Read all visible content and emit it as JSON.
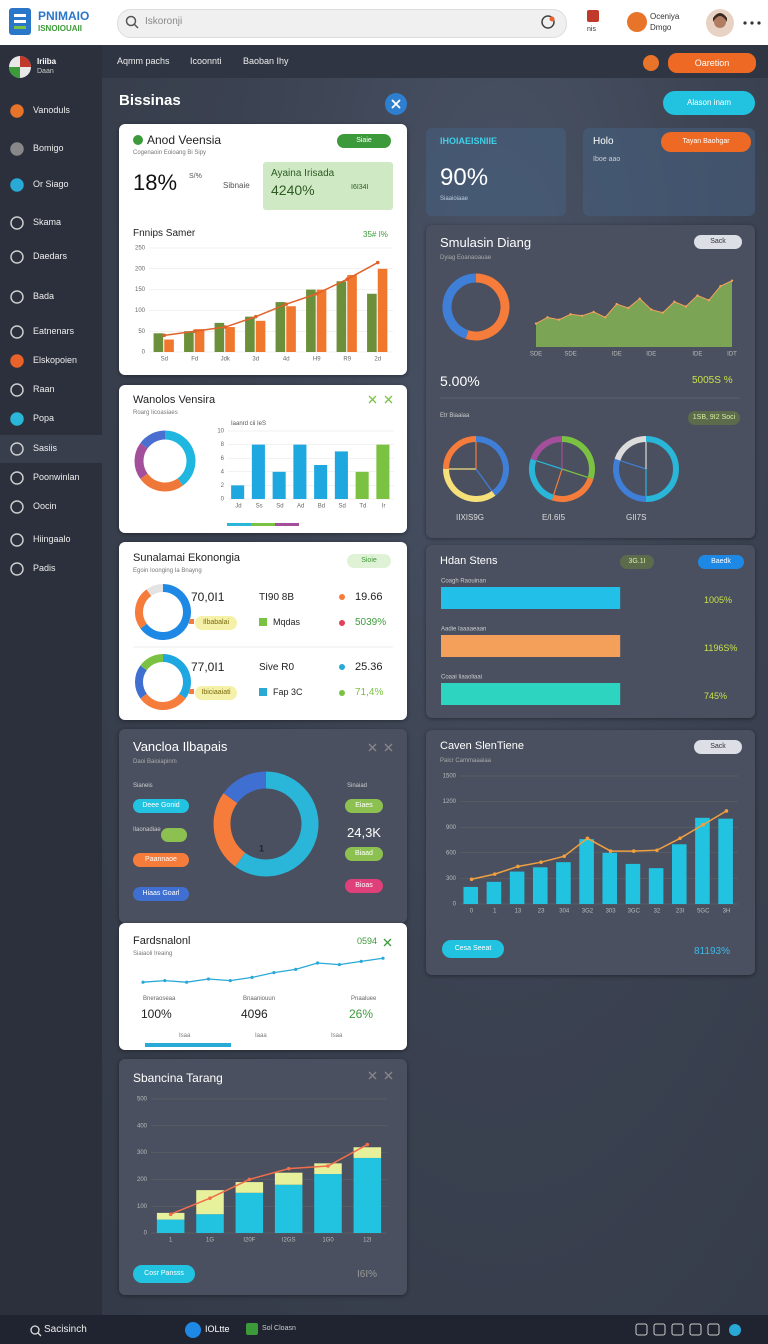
{
  "topbar": {
    "logo_title": "PNIMAIO",
    "logo_subtitle": "ISNOIOUAII",
    "search": "Iskoronji",
    "badge": "nis",
    "user_name": "Oceniya",
    "user_role": "Dmgo"
  },
  "sidebar": {
    "profile_name": "Iriiba",
    "profile_sub": "Daan",
    "items": [
      "Vanoduls",
      "Bomigo",
      "Or Siago",
      "Skama",
      "Daedars",
      "Bada",
      "Eatnenars",
      "Elskopoien",
      "Raan",
      "Popa",
      "Sasiis",
      "Poonwinlan",
      "Oocin",
      "Hiingaalo",
      "Padis"
    ]
  },
  "subnav": {
    "links": [
      "Aqmm pachs",
      "Icoonnti",
      "Baoban Ihy"
    ],
    "button": "Oaretion"
  },
  "main": {
    "title": "Bissinas",
    "button": "Alason inam"
  },
  "cards": {
    "a": {
      "title": "Anod Veensia",
      "subtitle": "Cogenaoin Eoioang Bi Sipy",
      "badge": "Siaie",
      "kpi": "18%",
      "kpi_unit": "S/%",
      "kpi_note": "Sibnaie",
      "callout_title": "Ayaina Irisada",
      "callout_value": "4240%",
      "callout_note": "I6I34I",
      "chart_title": "Fnnips Samer",
      "chart_badge": "35# I%",
      "chart": {
        "type": "bar",
        "grid": true,
        "categories": [
          "Sd",
          "Fd",
          "Jdk",
          "3d",
          "4d",
          "H9",
          "R9",
          "2d"
        ],
        "ylim": [
          0,
          250
        ],
        "yticks": [
          0,
          50,
          100,
          150,
          200,
          250
        ],
        "series": [
          {
            "color": "#6b8f3a",
            "values": [
              45,
              50,
              70,
              85,
              120,
              150,
              170,
              140
            ]
          },
          {
            "color": "#f0772e",
            "values": [
              30,
              55,
              60,
              75,
              110,
              150,
              185,
              200
            ]
          },
          {
            "type": "line",
            "color": "#e0622a",
            "values": [
              40,
              50,
              60,
              85,
              115,
              140,
              175,
              215
            ]
          }
        ]
      }
    },
    "b": {
      "title": "Wanolos Vensira",
      "subtitle": "Roarg Iicoasiaes",
      "chart_title": "Iaanrd cii IeS",
      "donut": {
        "type": "donut",
        "values": [
          40,
          25,
          20,
          15
        ],
        "colors": [
          "#1fb6e0",
          "#f0773a",
          "#a34f9b",
          "#4a6fd0"
        ]
      },
      "chart": {
        "type": "bar",
        "grid": true,
        "categories": [
          "Jd",
          "Ss",
          "Sd",
          "Ad",
          "Bd",
          "Sd",
          "Td",
          "Ir"
        ],
        "ylim": [
          0,
          10
        ],
        "yticks": [
          0,
          2,
          4,
          6,
          8,
          10
        ],
        "series": [
          {
            "colors": [
              "#1fa8e0",
              "#1fa8e0",
              "#1fa8e0",
              "#1fa8e0",
              "#1fa8e0",
              "#1fa8e0",
              "#7cc242",
              "#7cc242"
            ],
            "values": [
              2,
              8,
              4,
              8,
              5,
              7,
              4,
              8
            ]
          }
        ]
      }
    },
    "c": {
      "title": "Sunalamai Ekonongia",
      "subtitle": "Egoin Ioonging Ia Bnayng",
      "badge": "Sioie",
      "rows": [
        {
          "donut": {
            "type": "donut",
            "values": [
              65,
              25,
              10
            ],
            "colors": [
              "#1e88e5",
              "#f57c3a",
              "#e3e3e3"
            ]
          },
          "total": "70,0I1",
          "chip": "Ilbabalai",
          "metric": "TI90 8B",
          "metric_label": "Mqdas",
          "stat1": "19.66",
          "stat2": "5039%"
        },
        {
          "donut": {
            "type": "donut",
            "values": [
              35,
              30,
              20,
              15
            ],
            "colors": [
              "#1ea7e0",
              "#f57c3a",
              "#3f6fd0",
              "#7cc242"
            ]
          },
          "total": "77,0I1",
          "chip": "Ibiciaaiati",
          "metric": "Sive R0",
          "metric_label": "Fap 3C",
          "stat1": "25.36",
          "stat2": "71,4%"
        }
      ]
    },
    "d": {
      "title": "Vancloa Ilbapais",
      "subtitle": "Daoi Baioiapinm",
      "left_labels": [
        "Sianeis",
        "Ilaonadiae"
      ],
      "pills": [
        "Deee Gonid",
        "Paannaoe",
        "Hiaas Goarl"
      ],
      "donut": {
        "type": "donut",
        "values": [
          60,
          25,
          15
        ],
        "colors": [
          "#29b6d8",
          "#f57c3a",
          "#3f6fd0"
        ],
        "center": "1"
      },
      "right_label": "Sinaiad",
      "right_pills": [
        "Eiaes",
        "Biaad",
        "Bioas"
      ],
      "right_value": "24,3K"
    },
    "e": {
      "title": "Fardsnalonl",
      "subtitle": "Siaiaoli Ireaing",
      "badge": "0594",
      "chart": {
        "type": "line",
        "values": [
          8,
          9,
          8,
          10,
          9,
          11,
          14,
          16,
          20,
          19,
          21,
          23
        ],
        "ylim": [
          0,
          25
        ],
        "color": "#29a9d6"
      },
      "stats": [
        {
          "label": "Bneraoseaa",
          "value": "100%"
        },
        {
          "label": "Bnaaniouun",
          "value": "4096"
        },
        {
          "label": "Pnaaluee",
          "value": "26%"
        }
      ],
      "footer": [
        "Isaa",
        "Iaaa",
        "Isaa"
      ]
    },
    "f": {
      "title": "Sbancina Tarang",
      "button": "Cosr Pansss",
      "footer": "I6I%",
      "chart": {
        "type": "bar",
        "stacked": true,
        "grid": true,
        "categories": [
          "1",
          "1G",
          "I20F",
          "I2GS",
          "1G0",
          "12I"
        ],
        "ylim": [
          0,
          500
        ],
        "yticks": [
          0,
          100,
          200,
          300,
          400,
          500
        ],
        "series": [
          {
            "color": "#22c3e0",
            "values": [
              50,
              70,
              150,
              180,
              220,
              280
            ]
          },
          {
            "color": "#e7f09a",
            "values": [
              25,
              90,
              40,
              45,
              40,
              40
            ]
          },
          {
            "type": "line",
            "color": "#f26d4a",
            "values": [
              70,
              130,
              200,
              240,
              250,
              330
            ]
          }
        ]
      }
    },
    "r1": {
      "title": "IHOIAEISNIIE",
      "value": "90%",
      "note": "Siaaioiaae"
    },
    "r2": {
      "title": "Holo",
      "button": "Tayan Baohgar",
      "note": "Iboe aao"
    },
    "r3": {
      "title": "Smulasin Diang",
      "subtitle": "Dyiag Eoanaoauae",
      "button": "Sack",
      "donut": {
        "type": "donut",
        "values": [
          55,
          45
        ],
        "colors": [
          "#f57c3a",
          "#3f7fd8"
        ]
      },
      "chart": {
        "type": "area",
        "color": "#8cc152",
        "values": [
          30,
          38,
          35,
          42,
          40,
          45,
          38,
          55,
          50,
          62,
          48,
          44,
          58,
          52,
          66,
          60,
          78,
          85
        ],
        "ylim": [
          0,
          100
        ],
        "categories": [
          "SDE",
          null,
          null,
          "SDE",
          null,
          null,
          null,
          "IDE",
          null,
          null,
          "IDE",
          null,
          null,
          null,
          "IDE",
          null,
          null,
          "IDT"
        ]
      },
      "stat": "5.00%",
      "stat_right": "5005S %",
      "section": "Etr Biaaiaa",
      "section_badge": "1SB, 9I2 Soci",
      "pies": [
        {
          "type": "pie",
          "values": [
            40,
            35,
            25
          ],
          "colors": [
            "#3f7fd8",
            "#f5e07a",
            "#f57c3a"
          ],
          "label": "IIXIS9G"
        },
        {
          "type": "pie",
          "values": [
            30,
            25,
            25,
            20
          ],
          "colors": [
            "#7cc242",
            "#f57c3a",
            "#29b6d8",
            "#a34f9b"
          ],
          "label": "E/I.6I5"
        },
        {
          "type": "pie",
          "values": [
            50,
            30,
            20
          ],
          "colors": [
            "#29b6d8",
            "#3f7fd8",
            "#dcdcdc"
          ],
          "label": "GII7S"
        }
      ]
    },
    "r4": {
      "title": "Hdan Stens",
      "badge": "3G.1I",
      "button": "Baedk",
      "chart": {
        "type": "hbar",
        "labels": [
          "Coagh Raouinan",
          "Aadie Iaaaaeaan",
          "Coaai Iiaaoliaai"
        ],
        "values": [
          62,
          62,
          62
        ],
        "xlim": [
          0,
          100
        ],
        "colors": [
          "#22c0e8",
          "#f5a05a",
          "#2dd4c0"
        ]
      },
      "stats": [
        "1005%",
        "1196S%",
        "745%"
      ]
    },
    "r5": {
      "title": "Caven SlenTiene",
      "subtitle": "Paicr Cammaaaiaa",
      "button": "Sack",
      "button2": "Cesa Seeat",
      "footer": "81193%",
      "chart": {
        "type": "bar",
        "grid": true,
        "categories": [
          "0",
          "1",
          "13",
          "23",
          "304",
          "3G2",
          "303",
          "3GC",
          "32",
          "23I",
          "5GC",
          "3H"
        ],
        "ylim": [
          0,
          1500
        ],
        "yticks": [
          0,
          300,
          600,
          900,
          1200,
          1500
        ],
        "series": [
          {
            "color": "#22c3e0",
            "values": [
              200,
              260,
              380,
              430,
              490,
              760,
              600,
              470,
              420,
              700,
              1010,
              1000
            ]
          },
          {
            "type": "line",
            "color": "#f0a040",
            "values": [
              290,
              350,
              440,
              490,
              560,
              770,
              620,
              620,
              630,
              770,
              930,
              1090
            ]
          }
        ]
      }
    }
  },
  "taskbar": {
    "search": "Sacisinch",
    "items": [
      "IOLtte",
      "Sol Cloasn"
    ]
  }
}
